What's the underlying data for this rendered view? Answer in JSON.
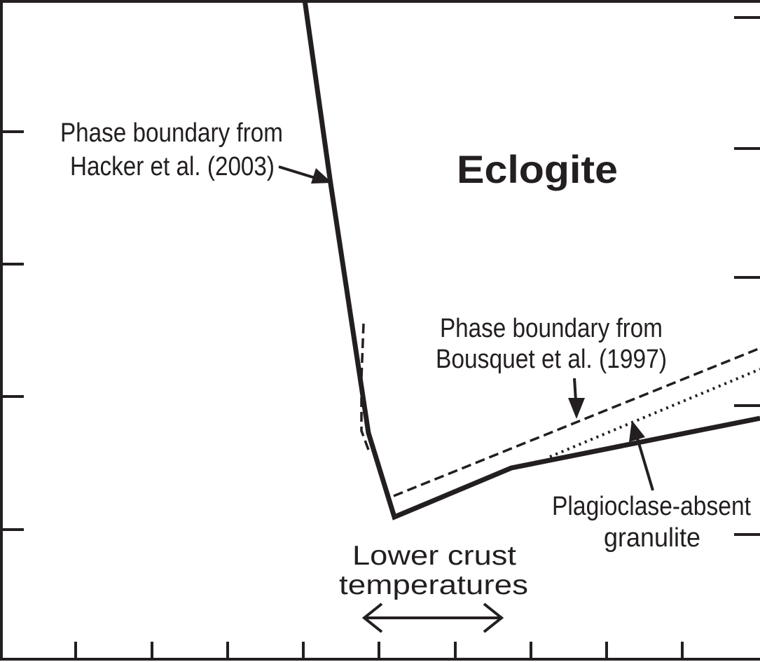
{
  "labels": {
    "eclogite": "Eclogite",
    "hacker_line1": "Phase boundary from",
    "hacker_line2": "Hacker et al. (2003)",
    "bousquet_line1": "Phase boundary from",
    "bousquet_line2": "Bousquet et al. (1997)",
    "plag_line1": "Plagioclase-absent",
    "plag_line2": "granulite",
    "lower_line1": "Lower crust",
    "lower_line2": "temperatures"
  },
  "colors": {
    "ink": "#231f20",
    "background": "#ffffff"
  }
}
